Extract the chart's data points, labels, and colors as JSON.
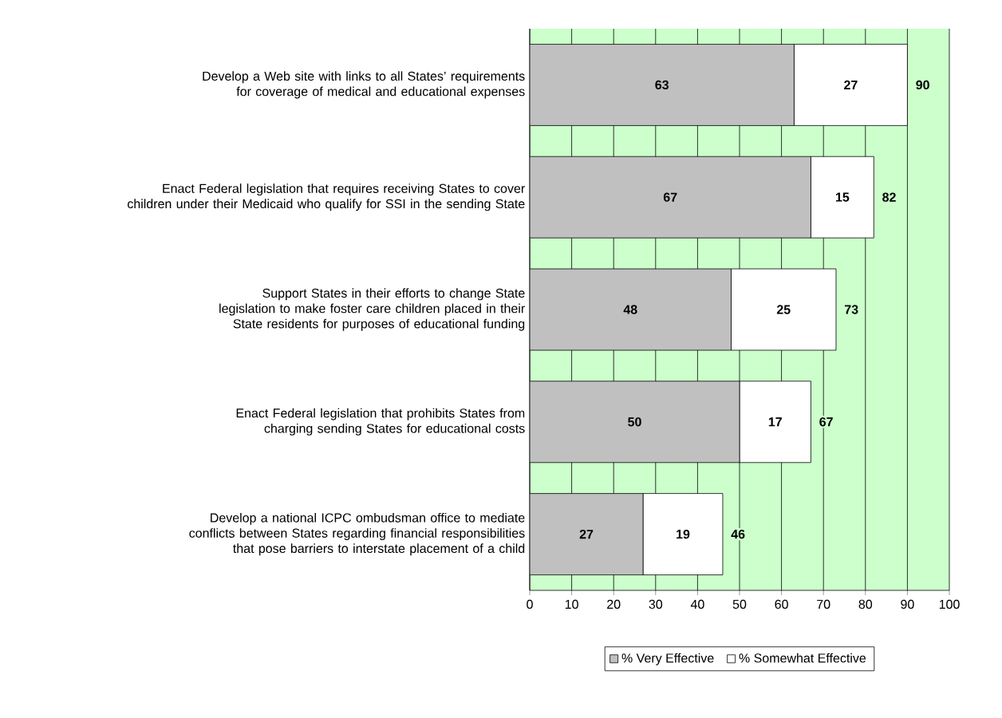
{
  "chart_data": {
    "type": "bar",
    "orientation": "horizontal",
    "stacked": true,
    "categories": [
      "Develop a Web site with links to all States’ requirements for coverage of medical and educational expenses",
      "Enact Federal legislation that requires receiving States to cover children under their Medicaid who qualify for SSI in the sending State",
      "Support States in their efforts to change State legislation to make foster care children placed in their State residents for purposes of educational funding",
      "Enact Federal legislation that prohibits States from charging sending States for educational costs",
      "Develop a national ICPC ombudsman office to mediate conflicts between States regarding financial responsibilities that pose barriers to interstate placement of a child"
    ],
    "series": [
      {
        "name": "% Very Effective",
        "color": "#c0c0c0",
        "values": [
          63,
          67,
          48,
          50,
          27
        ]
      },
      {
        "name": "% Somewhat Effective",
        "color": "#ffffff",
        "values": [
          27,
          15,
          25,
          17,
          19
        ]
      }
    ],
    "totals": [
      "90",
      "82",
      "73",
      "67",
      "46"
    ],
    "data_labels": true,
    "xlim": [
      0,
      100
    ],
    "xticks": [
      0,
      10,
      20,
      30,
      40,
      50,
      60,
      70,
      80,
      90,
      100
    ],
    "grid": "x",
    "legend": "bottom"
  }
}
